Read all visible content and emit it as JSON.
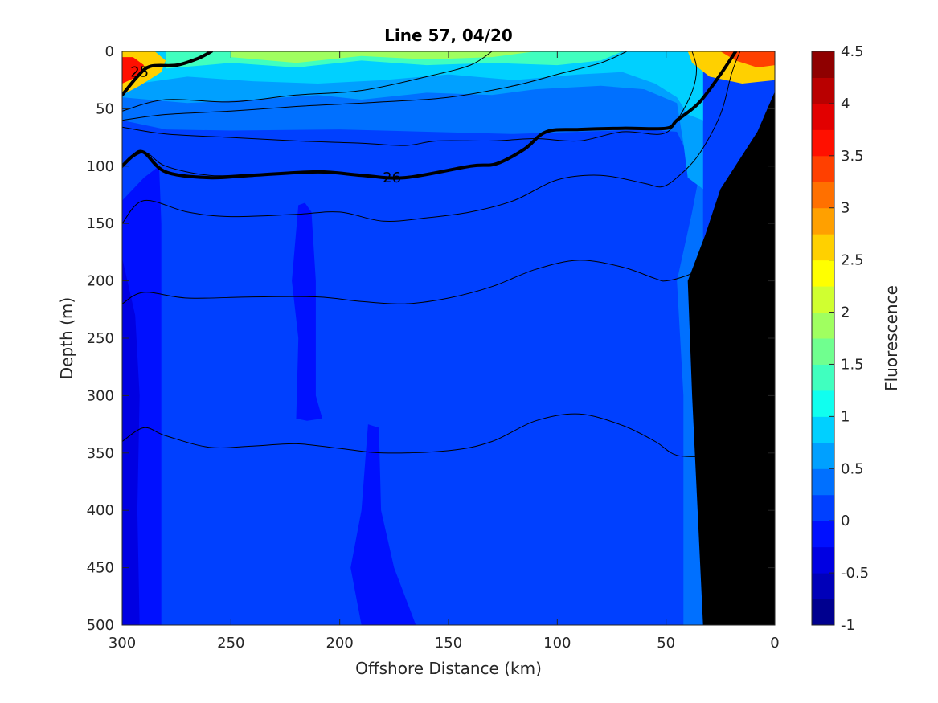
{
  "chart_data": {
    "type": "heatmap",
    "title": "Line 57, 04/20",
    "xlabel": "Offshore Distance (km)",
    "ylabel": "Depth (m)",
    "xlim": [
      300,
      0
    ],
    "ylim": [
      0,
      500
    ],
    "x_reversed": true,
    "y_reversed": true,
    "x_ticks": [
      300,
      250,
      200,
      150,
      100,
      50,
      0
    ],
    "y_ticks": [
      0,
      50,
      100,
      150,
      200,
      250,
      300,
      350,
      400,
      450,
      500
    ],
    "colorbar": {
      "label": "Fluorescence",
      "range": [
        -1,
        4.5
      ],
      "ticks": [
        -1,
        -0.5,
        0,
        0.5,
        1,
        1.5,
        2,
        2.5,
        3,
        3.5,
        4,
        4.5
      ],
      "tick_labels": [
        "-1",
        "-0.5",
        "0",
        "0.5",
        "1",
        "1.5",
        "2",
        "2.5",
        "3",
        "3.5",
        "4",
        "4.5"
      ],
      "levels": [
        {
          "from": -1.0,
          "to": -0.75,
          "color": "#00008f"
        },
        {
          "from": -0.75,
          "to": -0.5,
          "color": "#0000b9"
        },
        {
          "from": -0.5,
          "to": -0.25,
          "color": "#0000e2"
        },
        {
          "from": -0.25,
          "to": 0.0,
          "color": "#0010ff"
        },
        {
          "from": 0.0,
          "to": 0.25,
          "color": "#0040ff"
        },
        {
          "from": 0.25,
          "to": 0.5,
          "color": "#0070ff"
        },
        {
          "from": 0.5,
          "to": 0.75,
          "color": "#00a0ff"
        },
        {
          "from": 0.75,
          "to": 1.0,
          "color": "#00d0ff"
        },
        {
          "from": 1.0,
          "to": 1.25,
          "color": "#10ffef"
        },
        {
          "from": 1.25,
          "to": 1.5,
          "color": "#40ffbf"
        },
        {
          "from": 1.5,
          "to": 1.75,
          "color": "#70ff8f"
        },
        {
          "from": 1.75,
          "to": 2.0,
          "color": "#a0ff60"
        },
        {
          "from": 2.0,
          "to": 2.25,
          "color": "#d0ff30"
        },
        {
          "from": 2.25,
          "to": 2.5,
          "color": "#ffff00"
        },
        {
          "from": 2.5,
          "to": 2.75,
          "color": "#ffd000"
        },
        {
          "from": 2.75,
          "to": 3.0,
          "color": "#ffa000"
        },
        {
          "from": 3.0,
          "to": 3.25,
          "color": "#ff7000"
        },
        {
          "from": 3.25,
          "to": 3.5,
          "color": "#ff4000"
        },
        {
          "from": 3.5,
          "to": 3.75,
          "color": "#ff1000"
        },
        {
          "from": 3.75,
          "to": 4.0,
          "color": "#e20000"
        },
        {
          "from": 4.0,
          "to": 4.25,
          "color": "#b90000"
        },
        {
          "from": 4.25,
          "to": 4.5,
          "color": "#8f0000"
        }
      ]
    },
    "background_color": "#0040ff",
    "fill_regions": [
      {
        "name": "deep-band",
        "color": "#0070ff",
        "polygon": [
          [
            300,
            60
          ],
          [
            280,
            68
          ],
          [
            250,
            69
          ],
          [
            200,
            68
          ],
          [
            160,
            70
          ],
          [
            120,
            72
          ],
          [
            90,
            70
          ],
          [
            60,
            68
          ],
          [
            45,
            70
          ],
          [
            35,
            110
          ],
          [
            38,
            140
          ],
          [
            45,
            200
          ],
          [
            42,
            300
          ],
          [
            42,
            400
          ],
          [
            42,
            500
          ],
          [
            33,
            500
          ],
          [
            33,
            0
          ],
          [
            300,
            0
          ]
        ]
      },
      {
        "name": "mid-band",
        "color": "#00a0ff",
        "polygon": [
          [
            300,
            40
          ],
          [
            270,
            45
          ],
          [
            240,
            42
          ],
          [
            210,
            38
          ],
          [
            190,
            42
          ],
          [
            160,
            36
          ],
          [
            130,
            38
          ],
          [
            110,
            33
          ],
          [
            80,
            30
          ],
          [
            60,
            33
          ],
          [
            45,
            45
          ],
          [
            42,
            80
          ],
          [
            40,
            110
          ],
          [
            33,
            120
          ],
          [
            33,
            0
          ],
          [
            300,
            0
          ]
        ]
      },
      {
        "name": "upper-band",
        "color": "#00d0ff",
        "polygon": [
          [
            300,
            30
          ],
          [
            270,
            22
          ],
          [
            240,
            26
          ],
          [
            210,
            28
          ],
          [
            180,
            25
          ],
          [
            150,
            20
          ],
          [
            120,
            25
          ],
          [
            90,
            20
          ],
          [
            70,
            18
          ],
          [
            55,
            28
          ],
          [
            45,
            40
          ],
          [
            40,
            55
          ],
          [
            33,
            60
          ],
          [
            33,
            0
          ],
          [
            300,
            0
          ]
        ]
      },
      {
        "name": "cyan-band",
        "color": "#40ffbf",
        "polygon": [
          [
            280,
            15
          ],
          [
            250,
            10
          ],
          [
            220,
            14
          ],
          [
            190,
            8
          ],
          [
            160,
            12
          ],
          [
            130,
            10
          ],
          [
            100,
            12
          ],
          [
            80,
            8
          ],
          [
            70,
            0
          ],
          [
            280,
            0
          ]
        ]
      },
      {
        "name": "green-band",
        "color": "#a0ff60",
        "polygon": [
          [
            250,
            5
          ],
          [
            220,
            10
          ],
          [
            190,
            4
          ],
          [
            160,
            7
          ],
          [
            130,
            5
          ],
          [
            110,
            0
          ],
          [
            250,
            0
          ]
        ]
      },
      {
        "name": "nearshore-surface",
        "color": "#ffd000",
        "polygon": [
          [
            40,
            0
          ],
          [
            38,
            10
          ],
          [
            30,
            22
          ],
          [
            15,
            28
          ],
          [
            0,
            25
          ],
          [
            0,
            0
          ]
        ]
      },
      {
        "name": "nearshore-core",
        "color": "#ff4000",
        "polygon": [
          [
            25,
            0
          ],
          [
            18,
            8
          ],
          [
            8,
            14
          ],
          [
            0,
            12
          ],
          [
            0,
            0
          ]
        ]
      },
      {
        "name": "offshore-surface",
        "color": "#ffd000",
        "polygon": [
          [
            300,
            0
          ],
          [
            300,
            38
          ],
          [
            292,
            30
          ],
          [
            282,
            18
          ],
          [
            280,
            8
          ],
          [
            285,
            0
          ]
        ]
      },
      {
        "name": "offshore-core",
        "color": "#ff1000",
        "polygon": [
          [
            300,
            5
          ],
          [
            300,
            28
          ],
          [
            293,
            22
          ],
          [
            290,
            12
          ],
          [
            295,
            5
          ]
        ]
      },
      {
        "name": "west-low",
        "color": "#0010ff",
        "polygon": [
          [
            300,
            130
          ],
          [
            290,
            110
          ],
          [
            283,
            100
          ],
          [
            282,
            150
          ],
          [
            282,
            300
          ],
          [
            282,
            500
          ],
          [
            300,
            500
          ]
        ]
      },
      {
        "name": "west-lower",
        "color": "#0000e2",
        "polygon": [
          [
            300,
            180
          ],
          [
            294,
            230
          ],
          [
            292,
            300
          ],
          [
            293,
            400
          ],
          [
            292,
            500
          ],
          [
            300,
            500
          ]
        ]
      },
      {
        "name": "column-low-1",
        "color": "#0010ff",
        "polygon": [
          [
            219,
            134
          ],
          [
            216,
            132
          ],
          [
            213,
            140
          ],
          [
            211,
            200
          ],
          [
            211,
            300
          ],
          [
            208,
            320
          ],
          [
            215,
            322
          ],
          [
            220,
            320
          ],
          [
            219,
            250
          ],
          [
            222,
            200
          ]
        ]
      },
      {
        "name": "column-low-2",
        "color": "#0010ff",
        "polygon": [
          [
            187,
            325
          ],
          [
            182,
            328
          ],
          [
            181,
            400
          ],
          [
            175,
            450
          ],
          [
            165,
            500
          ],
          [
            190,
            500
          ],
          [
            195,
            450
          ],
          [
            190,
            400
          ]
        ]
      }
    ],
    "land_polygon": [
      [
        0,
        35
      ],
      [
        0,
        500
      ],
      [
        33,
        500
      ],
      [
        38,
        300
      ],
      [
        40,
        200
      ],
      [
        32,
        160
      ],
      [
        25,
        120
      ],
      [
        8,
        70
      ]
    ],
    "land_color": "#000000",
    "isopycnals": [
      {
        "label": "25",
        "bold": true,
        "points": [
          [
            300,
            38
          ],
          [
            293,
            22
          ],
          [
            287,
            13
          ],
          [
            275,
            12
          ],
          [
            265,
            6
          ],
          [
            259,
            0
          ]
        ],
        "label_at": [
          292,
          18
        ]
      },
      {
        "label": "26",
        "bold": true,
        "points": [
          [
            300,
            100
          ],
          [
            295,
            91
          ],
          [
            290,
            88
          ],
          [
            280,
            105
          ],
          [
            260,
            110
          ],
          [
            240,
            108
          ],
          [
            210,
            105
          ],
          [
            190,
            108
          ],
          [
            170,
            110
          ],
          [
            140,
            100
          ],
          [
            128,
            98
          ],
          [
            115,
            85
          ],
          [
            105,
            70
          ],
          [
            90,
            68
          ],
          [
            70,
            67
          ],
          [
            50,
            67
          ],
          [
            45,
            60
          ],
          [
            35,
            45
          ],
          [
            25,
            20
          ],
          [
            18,
            0
          ]
        ],
        "label_at": [
          176,
          110
        ]
      },
      {
        "label": "",
        "bold": false,
        "points": [
          [
            300,
            52
          ],
          [
            280,
            42
          ],
          [
            250,
            44
          ],
          [
            220,
            38
          ],
          [
            190,
            34
          ],
          [
            160,
            22
          ],
          [
            140,
            12
          ],
          [
            130,
            0
          ]
        ]
      },
      {
        "label": "",
        "bold": false,
        "points": [
          [
            300,
            60
          ],
          [
            280,
            55
          ],
          [
            250,
            52
          ],
          [
            220,
            48
          ],
          [
            200,
            46
          ],
          [
            180,
            44
          ],
          [
            150,
            40
          ],
          [
            120,
            30
          ],
          [
            100,
            20
          ],
          [
            80,
            10
          ],
          [
            68,
            0
          ]
        ]
      },
      {
        "label": "",
        "bold": false,
        "points": [
          [
            300,
            66
          ],
          [
            280,
            72
          ],
          [
            250,
            75
          ],
          [
            220,
            78
          ],
          [
            190,
            80
          ],
          [
            170,
            82
          ],
          [
            155,
            78
          ],
          [
            130,
            78
          ],
          [
            110,
            76
          ],
          [
            90,
            78
          ],
          [
            70,
            70
          ],
          [
            52,
            72
          ],
          [
            45,
            60
          ],
          [
            38,
            35
          ],
          [
            36,
            15
          ],
          [
            38,
            0
          ]
        ]
      },
      {
        "label": "",
        "bold": false,
        "points": [
          [
            300,
            100
          ],
          [
            290,
            88
          ],
          [
            280,
            100
          ],
          [
            260,
            108
          ],
          [
            240,
            107
          ],
          [
            210,
            105
          ]
        ]
      },
      {
        "label": "",
        "bold": false,
        "points": [
          [
            300,
            150
          ],
          [
            290,
            130
          ],
          [
            270,
            140
          ],
          [
            250,
            144
          ],
          [
            220,
            142
          ],
          [
            200,
            140
          ],
          [
            180,
            148
          ],
          [
            160,
            145
          ],
          [
            140,
            140
          ],
          [
            120,
            130
          ],
          [
            100,
            112
          ],
          [
            80,
            108
          ],
          [
            60,
            115
          ],
          [
            52,
            118
          ],
          [
            45,
            110
          ],
          [
            35,
            90
          ],
          [
            25,
            55
          ],
          [
            20,
            20
          ],
          [
            16,
            0
          ]
        ]
      },
      {
        "label": "",
        "bold": false,
        "points": [
          [
            300,
            220
          ],
          [
            290,
            210
          ],
          [
            270,
            215
          ],
          [
            240,
            214
          ],
          [
            210,
            214
          ],
          [
            190,
            218
          ],
          [
            170,
            220
          ],
          [
            150,
            215
          ],
          [
            130,
            205
          ],
          [
            110,
            190
          ],
          [
            90,
            182
          ],
          [
            70,
            188
          ],
          [
            55,
            198
          ],
          [
            50,
            200
          ],
          [
            40,
            195
          ],
          [
            25,
            182
          ]
        ]
      },
      {
        "label": "",
        "bold": false,
        "points": [
          [
            300,
            340
          ],
          [
            290,
            328
          ],
          [
            280,
            335
          ],
          [
            260,
            345
          ],
          [
            240,
            344
          ],
          [
            220,
            342
          ],
          [
            200,
            346
          ],
          [
            180,
            350
          ],
          [
            150,
            348
          ],
          [
            130,
            340
          ],
          [
            110,
            322
          ],
          [
            90,
            316
          ],
          [
            70,
            326
          ],
          [
            55,
            340
          ],
          [
            45,
            352
          ],
          [
            30,
            353
          ]
        ]
      }
    ]
  }
}
